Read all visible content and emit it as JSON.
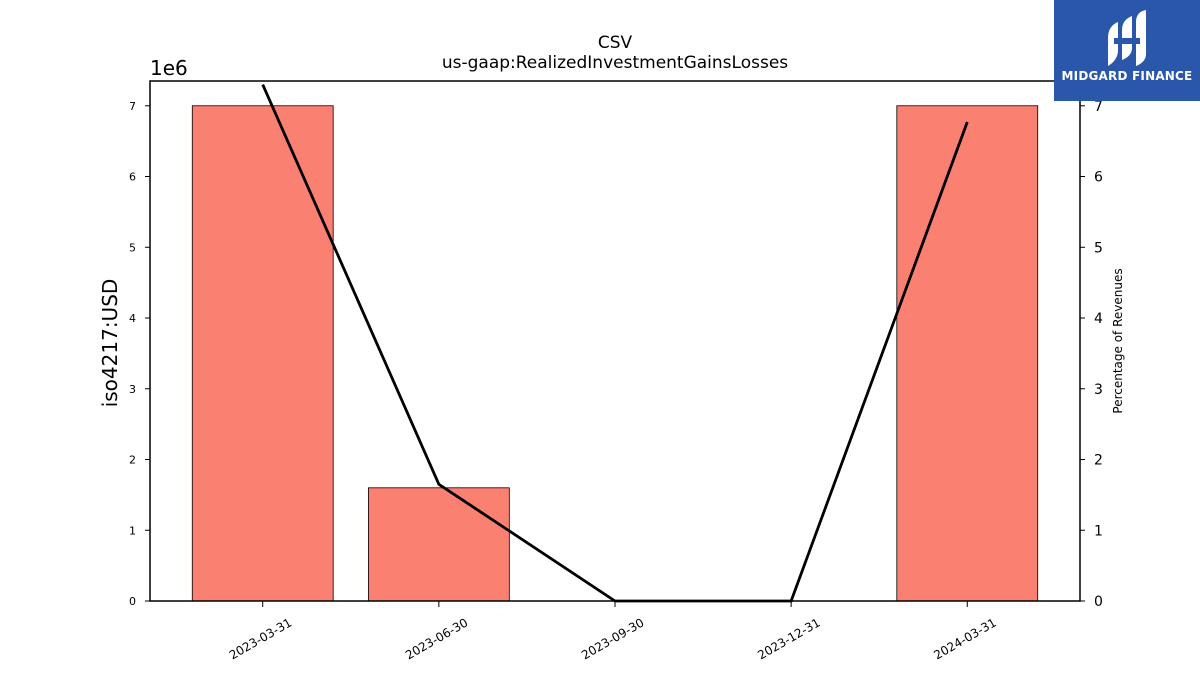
{
  "chart_data": {
    "type": "bar",
    "title": "CSV",
    "subtitle": "us-gaap:RealizedInvestmentGainsLosses",
    "categories": [
      "2023-03-31",
      "2023-06-30",
      "2023-09-30",
      "2023-12-31",
      "2024-03-31"
    ],
    "ylabel": "iso4217:USD",
    "ylabel_right": "Percentage of Revenues",
    "y_offset_text": "1e6",
    "ylim": [
      0,
      7350000
    ],
    "y2lim": [
      0,
      7.35
    ],
    "yticks": [
      "0",
      "1",
      "2",
      "3",
      "4",
      "5",
      "6",
      "7"
    ],
    "y2ticks": [
      "0",
      "1",
      "2",
      "3",
      "4",
      "5",
      "6",
      "7"
    ],
    "series": [
      {
        "type": "bar",
        "values": [
          7000000,
          1600000,
          0,
          0,
          7000000
        ],
        "color": "#fa8072"
      },
      {
        "type": "line",
        "axis": "right",
        "values": [
          7.3,
          1.65,
          0,
          0,
          6.77
        ],
        "color": "#000000"
      }
    ],
    "grid": false
  },
  "logo": {
    "text": "MIDGARD FINANCE",
    "icon": "midgard-logo-icon",
    "background": "#2b57aa"
  }
}
